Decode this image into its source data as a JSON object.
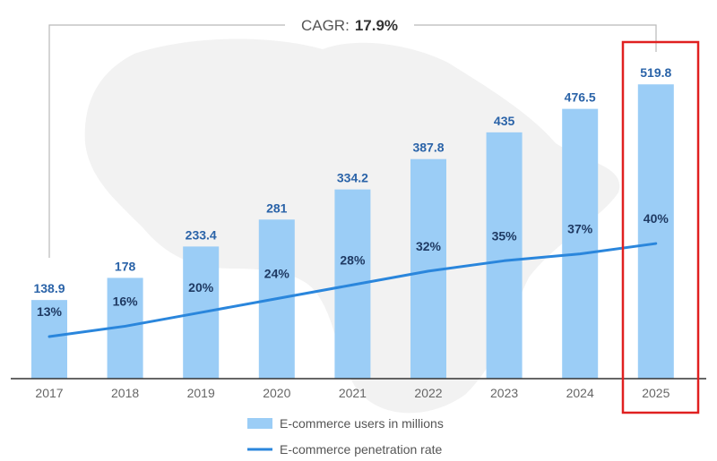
{
  "chart_data": {
    "type": "bar",
    "categories": [
      "2017",
      "2018",
      "2019",
      "2020",
      "2021",
      "2022",
      "2023",
      "2024",
      "2025"
    ],
    "series": [
      {
        "name": "E-commerce users in millions",
        "type": "bar",
        "values": [
          138.9,
          178,
          233.4,
          281,
          334.2,
          387.8,
          435,
          476.5,
          519.8
        ],
        "labels": [
          "138.9",
          "178",
          "233.4",
          "281",
          "334.2",
          "387.8",
          "435",
          "476.5",
          "519.8"
        ],
        "color": "#9bcdf6"
      },
      {
        "name": "E-commerce penetration rate",
        "type": "line",
        "values": [
          13,
          16,
          20,
          24,
          28,
          32,
          35,
          37,
          40
        ],
        "labels": [
          "13%",
          "16%",
          "20%",
          "24%",
          "28%",
          "32%",
          "35%",
          "37%",
          "40%"
        ],
        "color": "#2a86dc"
      }
    ],
    "annotation": {
      "label": "CAGR:",
      "value": "17.9%"
    },
    "highlight": {
      "category": "2025",
      "color": "#e02020"
    },
    "grid": false,
    "legend_position": "bottom-center",
    "background_color": "#ffffff",
    "map_color": "#eeeeee"
  }
}
